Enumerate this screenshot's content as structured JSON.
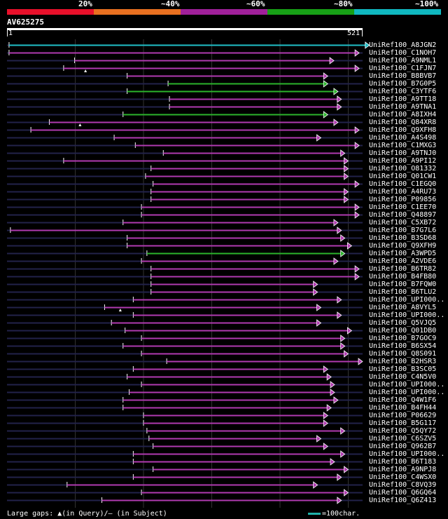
{
  "legend": {
    "segments": [
      {
        "label": "20%",
        "color": "#e8102a"
      },
      {
        "label": "~40%",
        "color": "#e87020"
      },
      {
        "label": "~60%",
        "color": "#a0209a"
      },
      {
        "label": "~80%",
        "color": "#17a016"
      },
      {
        "label": "~100%",
        "color": "#10b8c0"
      }
    ]
  },
  "query": {
    "id": "AV625275",
    "start": "1",
    "end": "521"
  },
  "colors": {
    "purple": "#b03ab0",
    "green": "#2bb42b",
    "cyan": "#20c0c8",
    "guide": "#22224a",
    "grid": "#333333"
  },
  "hits": [
    {
      "label": "UniRef100_A8JGN2",
      "start": 3,
      "end": 531,
      "color": "cyan",
      "marks": []
    },
    {
      "label": "UniRef100_C1NOH7",
      "start": 3,
      "end": 516,
      "color": "purple",
      "marks": []
    },
    {
      "label": "UniRef100_A9NML1",
      "start": 99,
      "end": 479,
      "color": "purple",
      "marks": []
    },
    {
      "label": "UniRef100_C1FJN7",
      "start": 83,
      "end": 516,
      "color": "purple",
      "marks": [
        115
      ]
    },
    {
      "label": "UniRef100_B8BVB7",
      "start": 176,
      "end": 470,
      "color": "purple",
      "marks": []
    },
    {
      "label": "UniRef100_B7G0P5",
      "start": 236,
      "end": 470,
      "color": "green",
      "marks": []
    },
    {
      "label": "UniRef100_C3YTF6",
      "start": 176,
      "end": 485,
      "color": "green",
      "marks": []
    },
    {
      "label": "UniRef100_A9TT18",
      "start": 238,
      "end": 490,
      "color": "purple",
      "marks": []
    },
    {
      "label": "UniRef100_A9TNA1",
      "start": 238,
      "end": 490,
      "color": "purple",
      "marks": []
    },
    {
      "label": "UniRef100_A8IXH4",
      "start": 170,
      "end": 470,
      "color": "green",
      "marks": []
    },
    {
      "label": "UniRef100_Q84XR8",
      "start": 62,
      "end": 485,
      "color": "purple",
      "marks": [
        107
      ]
    },
    {
      "label": "UniRef100_Q9XFH8",
      "start": 35,
      "end": 516,
      "color": "purple",
      "marks": []
    },
    {
      "label": "UniRef100_A4S498",
      "start": 157,
      "end": 460,
      "color": "purple",
      "marks": []
    },
    {
      "label": "UniRef100_C1MXG3",
      "start": 188,
      "end": 516,
      "color": "purple",
      "marks": []
    },
    {
      "label": "UniRef100_A9TNJ0",
      "start": 229,
      "end": 495,
      "color": "purple",
      "marks": []
    },
    {
      "label": "UniRef100_A9PI12",
      "start": 83,
      "end": 500,
      "color": "purple",
      "marks": []
    },
    {
      "label": "UniRef100_O81332",
      "start": 211,
      "end": 500,
      "color": "purple",
      "marks": []
    },
    {
      "label": "UniRef100_Q01CW1",
      "start": 203,
      "end": 500,
      "color": "purple",
      "marks": []
    },
    {
      "label": "UniRef100_C1EGQ0",
      "start": 214,
      "end": 516,
      "color": "purple",
      "marks": []
    },
    {
      "label": "UniRef100_A4RU73",
      "start": 211,
      "end": 500,
      "color": "purple",
      "marks": []
    },
    {
      "label": "UniRef100_P09856",
      "start": 211,
      "end": 500,
      "color": "purple",
      "marks": []
    },
    {
      "label": "UniRef100_C1EE70",
      "start": 197,
      "end": 516,
      "color": "purple",
      "marks": []
    },
    {
      "label": "UniRef100_Q48897",
      "start": 197,
      "end": 516,
      "color": "purple",
      "marks": []
    },
    {
      "label": "UniRef100_C5XB72",
      "start": 170,
      "end": 485,
      "color": "purple",
      "marks": []
    },
    {
      "label": "UniRef100_B7G7L6",
      "start": 5,
      "end": 490,
      "color": "purple",
      "marks": []
    },
    {
      "label": "UniRef100_B3SD68",
      "start": 176,
      "end": 495,
      "color": "purple",
      "marks": []
    },
    {
      "label": "UniRef100_Q9XFH9",
      "start": 176,
      "end": 505,
      "color": "purple",
      "marks": []
    },
    {
      "label": "UniRef100_A3WPD5",
      "start": 205,
      "end": 495,
      "color": "green",
      "marks": []
    },
    {
      "label": "UniRef100_A2VDE6",
      "start": 197,
      "end": 485,
      "color": "purple",
      "marks": []
    },
    {
      "label": "UniRef100_B6TR82",
      "start": 211,
      "end": 516,
      "color": "purple",
      "marks": []
    },
    {
      "label": "UniRef100_B4FB80",
      "start": 211,
      "end": 516,
      "color": "purple",
      "marks": []
    },
    {
      "label": "UniRef100_B7FQW0",
      "start": 211,
      "end": 455,
      "color": "purple",
      "marks": []
    },
    {
      "label": "UniRef100_B6TLU2",
      "start": 211,
      "end": 455,
      "color": "purple",
      "marks": []
    },
    {
      "label": "UniRef100_UPI000..",
      "start": 185,
      "end": 490,
      "color": "purple",
      "marks": []
    },
    {
      "label": "UniRef100_A8VYL5",
      "start": 143,
      "end": 460,
      "color": "purple",
      "marks": [
        166
      ]
    },
    {
      "label": "UniRef100_UPI000..",
      "start": 185,
      "end": 490,
      "color": "purple",
      "marks": []
    },
    {
      "label": "UniRef100_Q5VJQ5",
      "start": 153,
      "end": 460,
      "color": "purple",
      "marks": []
    },
    {
      "label": "UniRef100_Q01DB0",
      "start": 173,
      "end": 505,
      "color": "purple",
      "marks": []
    },
    {
      "label": "UniRef100_B7GOC9",
      "start": 197,
      "end": 495,
      "color": "purple",
      "marks": []
    },
    {
      "label": "UniRef100_B6SX54",
      "start": 170,
      "end": 495,
      "color": "purple",
      "marks": []
    },
    {
      "label": "UniRef100_Q8S091",
      "start": 197,
      "end": 500,
      "color": "purple",
      "marks": []
    },
    {
      "label": "UniRef100_B2HSR3",
      "start": 234,
      "end": 521,
      "color": "purple",
      "marks": []
    },
    {
      "label": "UniRef100_B3SC05",
      "start": 185,
      "end": 470,
      "color": "purple",
      "marks": []
    },
    {
      "label": "UniRef100_C4N5V0",
      "start": 176,
      "end": 475,
      "color": "purple",
      "marks": []
    },
    {
      "label": "UniRef100_UPI000..",
      "start": 197,
      "end": 480,
      "color": "purple",
      "marks": []
    },
    {
      "label": "UniRef100_UPI000..",
      "start": 179,
      "end": 480,
      "color": "purple",
      "marks": []
    },
    {
      "label": "UniRef100_Q4W1F6",
      "start": 170,
      "end": 485,
      "color": "purple",
      "marks": []
    },
    {
      "label": "UniRef100_B4FH44",
      "start": 170,
      "end": 475,
      "color": "purple",
      "marks": []
    },
    {
      "label": "UniRef100_P06629",
      "start": 200,
      "end": 470,
      "color": "purple",
      "marks": []
    },
    {
      "label": "UniRef100_B5G117",
      "start": 200,
      "end": 470,
      "color": "purple",
      "marks": []
    },
    {
      "label": "UniRef100_Q5QY72",
      "start": 205,
      "end": 495,
      "color": "purple",
      "marks": []
    },
    {
      "label": "UniRef100_C6SZV5",
      "start": 208,
      "end": 460,
      "color": "purple",
      "marks": []
    },
    {
      "label": "UniRef100_Q962B7",
      "start": 214,
      "end": 470,
      "color": "purple",
      "marks": []
    },
    {
      "label": "UniRef100_UPI000..",
      "start": 185,
      "end": 495,
      "color": "purple",
      "marks": []
    },
    {
      "label": "UniRef100_B6T183",
      "start": 185,
      "end": 480,
      "color": "purple",
      "marks": []
    },
    {
      "label": "UniRef100_A9NPJ8",
      "start": 214,
      "end": 500,
      "color": "purple",
      "marks": []
    },
    {
      "label": "UniRef100_C4WSX0",
      "start": 185,
      "end": 490,
      "color": "purple",
      "marks": []
    },
    {
      "label": "UniRef100_C8VQ39",
      "start": 88,
      "end": 455,
      "color": "purple",
      "marks": []
    },
    {
      "label": "UniRef100_Q6GQ64",
      "start": 197,
      "end": 500,
      "color": "purple",
      "marks": []
    },
    {
      "label": "UniRef100_Q6Z413",
      "start": 139,
      "end": 490,
      "color": "purple",
      "marks": []
    }
  ],
  "footer": {
    "gaps_text": "Large gaps: ▲(in Query)/— (in Subject)",
    "scale_text": "=100char."
  }
}
